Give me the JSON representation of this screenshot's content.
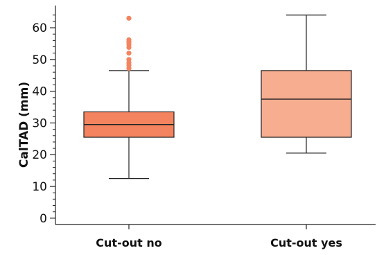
{
  "chart_data": {
    "type": "box",
    "title": "",
    "xlabel": "",
    "ylabel": "CalTAD (mm)",
    "ylim": [
      -2,
      67
    ],
    "yticks": [
      0,
      10,
      20,
      30,
      40,
      50,
      60
    ],
    "yticklabels": [
      "0",
      "10",
      "20",
      "30",
      "40",
      "50",
      "60"
    ],
    "categories": [
      "Cut-out no",
      "Cut-out yes"
    ],
    "boxes": [
      {
        "category": "Cut-out no",
        "whisker_low": 12.5,
        "q1": 25.5,
        "median": 29.5,
        "q3": 33.5,
        "whisker_high": 46.5,
        "outliers": [
          47.2,
          48.2,
          49.0,
          50.0,
          52.0,
          53.8,
          54.8,
          55.5,
          56.2,
          63.0
        ],
        "color": "#f4845f"
      },
      {
        "category": "Cut-out yes",
        "whisker_low": 20.5,
        "q1": 25.5,
        "median": 37.5,
        "q3": 46.5,
        "whisker_high": 64.0,
        "outliers": [],
        "color": "#f7ad90"
      }
    ],
    "grid": false,
    "legend": "none"
  },
  "colors": {
    "axis": "#222222",
    "outlier": "#f4845f",
    "box_edge": "#222222"
  }
}
